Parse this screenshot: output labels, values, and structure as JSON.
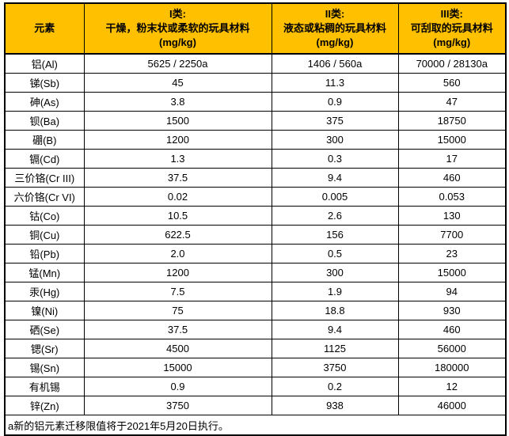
{
  "colors": {
    "header_bg": "#FFC000",
    "border": "#000000",
    "text": "#000000"
  },
  "table": {
    "element_header": "元素",
    "class_headers": [
      {
        "title": "I类:",
        "desc": "干燥，粉末状或柔软的玩具材料",
        "unit": "(mg/kg)"
      },
      {
        "title": "II类:",
        "desc": "液态或粘稠的玩具材料",
        "unit": "(mg/kg)"
      },
      {
        "title": "III类:",
        "desc": "可刮取的玩具材料",
        "unit": "(mg/kg)"
      }
    ],
    "rows": [
      {
        "element": "铝(Al)",
        "class1": "5625 / 2250a",
        "class2": "1406 / 560a",
        "class3": "70000 / 28130a"
      },
      {
        "element": "锑(Sb)",
        "class1": "45",
        "class2": "11.3",
        "class3": "560"
      },
      {
        "element": "砷(As)",
        "class1": "3.8",
        "class2": "0.9",
        "class3": "47"
      },
      {
        "element": "钡(Ba)",
        "class1": "1500",
        "class2": "375",
        "class3": "18750"
      },
      {
        "element": "硼(B)",
        "class1": "1200",
        "class2": "300",
        "class3": "15000"
      },
      {
        "element": "镉(Cd)",
        "class1": "1.3",
        "class2": "0.3",
        "class3": "17"
      },
      {
        "element": "三价铬(Cr III)",
        "class1": "37.5",
        "class2": "9.4",
        "class3": "460"
      },
      {
        "element": "六价铬(Cr VI)",
        "class1": "0.02",
        "class2": "0.005",
        "class3": "0.053"
      },
      {
        "element": "钴(Co)",
        "class1": "10.5",
        "class2": "2.6",
        "class3": "130"
      },
      {
        "element": "铜(Cu)",
        "class1": "622.5",
        "class2": "156",
        "class3": "7700"
      },
      {
        "element": "铅(Pb)",
        "class1": "2.0",
        "class2": "0.5",
        "class3": "23"
      },
      {
        "element": "锰(Mn)",
        "class1": "1200",
        "class2": "300",
        "class3": "15000"
      },
      {
        "element": "汞(Hg)",
        "class1": "7.5",
        "class2": "1.9",
        "class3": "94"
      },
      {
        "element": "镍(Ni)",
        "class1": "75",
        "class2": "18.8",
        "class3": "930"
      },
      {
        "element": "硒(Se)",
        "class1": "37.5",
        "class2": "9.4",
        "class3": "460"
      },
      {
        "element": "锶(Sr)",
        "class1": "4500",
        "class2": "1125",
        "class3": "56000"
      },
      {
        "element": "锡(Sn)",
        "class1": "15000",
        "class2": "3750",
        "class3": "180000"
      },
      {
        "element": "有机锡",
        "class1": "0.9",
        "class2": "0.2",
        "class3": "12"
      },
      {
        "element": "锌(Zn)",
        "class1": "3750",
        "class2": "938",
        "class3": "46000"
      }
    ],
    "footnote": "a新的铝元素迁移限值将于2021年5月20日执行。"
  }
}
